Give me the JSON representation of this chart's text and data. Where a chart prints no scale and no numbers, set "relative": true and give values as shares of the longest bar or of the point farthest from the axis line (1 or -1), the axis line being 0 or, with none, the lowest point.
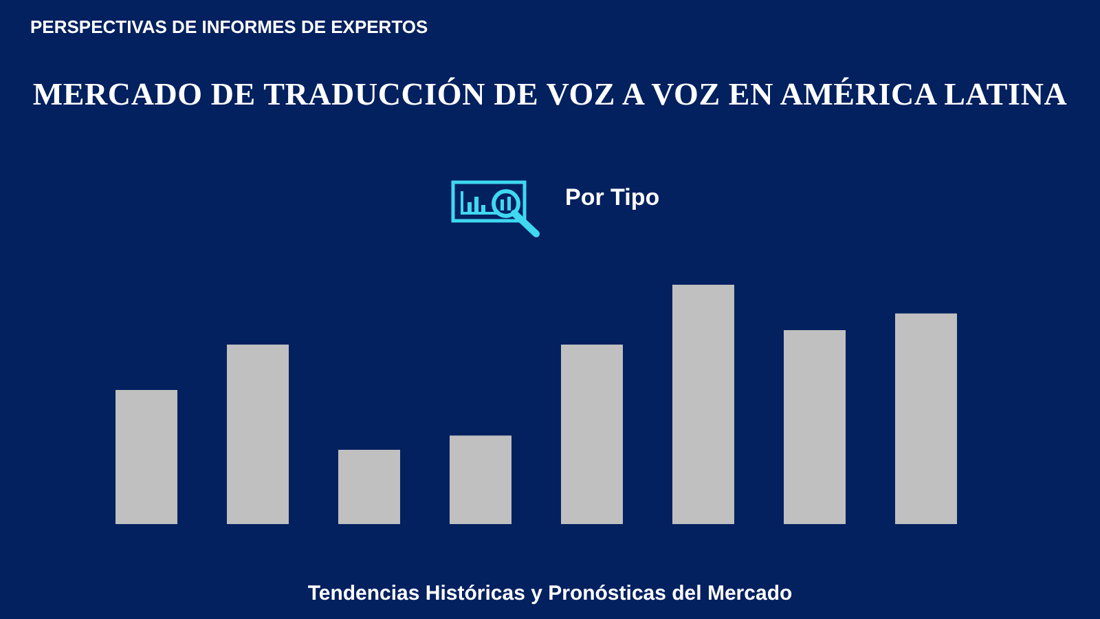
{
  "chart_data": {
    "type": "bar",
    "title": "MERCADO DE TRADUCCIÓN DE VOZ A VOZ EN AMÉRICA LATINA",
    "subtitle": "Por Tipo",
    "annotations": [
      "PERSPECTIVAS DE INFORMES DE EXPERTOS",
      "Tendencias Históricas y Pronósticas del Mercado"
    ],
    "categories": [
      null,
      null,
      null,
      null,
      null,
      null,
      null,
      null
    ],
    "values": [
      0.56,
      0.75,
      0.31,
      0.37,
      0.75,
      1,
      0.81,
      0.88
    ],
    "color": "#c0c0c0",
    "relative": true
  }
}
